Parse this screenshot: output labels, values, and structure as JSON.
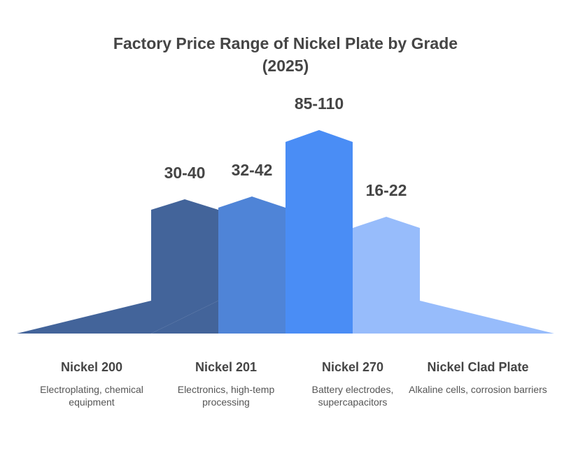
{
  "chart_data": {
    "type": "bar",
    "title": "Factory Price Range of Nickel Plate by Grade",
    "subtitle": "(2025)",
    "categories": [
      "Nickel 200",
      "Nickel 201",
      "Nickel 270",
      "Nickel Clad Plate"
    ],
    "descriptions": [
      "Electroplating, chemical equipment",
      "Electronics, high-temp processing",
      "Battery electrodes, supercapacitors",
      "Alkaline cells, corrosion barriers"
    ],
    "range_labels": [
      "30-40",
      "32-42",
      "85-110",
      "16-22"
    ],
    "ranges": [
      [
        30,
        40
      ],
      [
        32,
        42
      ],
      [
        85,
        110
      ],
      [
        16,
        22
      ]
    ],
    "colors": [
      "#43649a",
      "#4f84d7",
      "#4a8df5",
      "#97bcfb"
    ]
  }
}
